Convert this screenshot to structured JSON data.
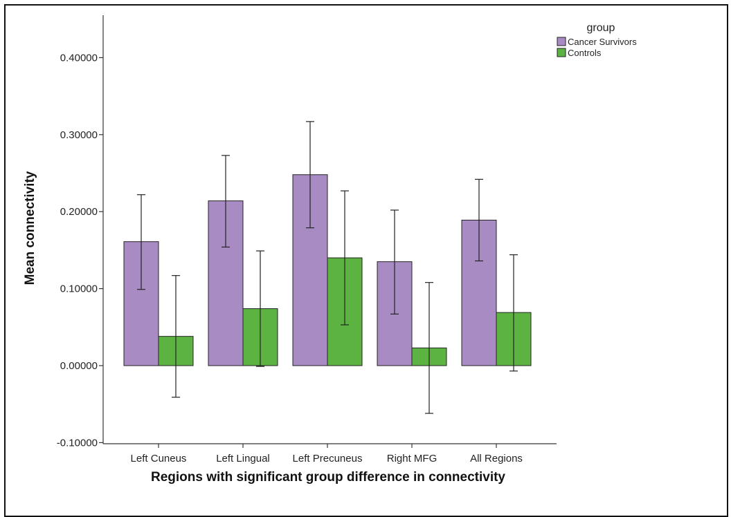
{
  "chart_data": {
    "type": "bar",
    "title": "",
    "xlabel": "Regions with significant group difference in connectivity",
    "ylabel": "Mean connectivity",
    "categories": [
      "Left Cuneus",
      "Left Lingual",
      "Left Precuneus",
      "Right MFG",
      "All Regions"
    ],
    "ylim": [
      -0.1,
      0.45
    ],
    "yticks": [
      "-0.10000",
      "0.00000",
      "0.10000",
      "0.20000",
      "0.30000",
      "0.40000"
    ],
    "ytick_values": [
      -0.1,
      0.0,
      0.1,
      0.2,
      0.3,
      0.4
    ],
    "legend_title": "group",
    "legend_position": "top-right",
    "grid": false,
    "series": [
      {
        "name": "Cancer Survivors",
        "color": "#a98bc3",
        "values": [
          0.161,
          0.214,
          0.248,
          0.135,
          0.189
        ],
        "err_low": [
          0.099,
          0.154,
          0.179,
          0.067,
          0.136
        ],
        "err_high": [
          0.222,
          0.273,
          0.317,
          0.202,
          0.242
        ]
      },
      {
        "name": "Controls",
        "color": "#5db342",
        "values": [
          0.038,
          0.074,
          0.14,
          0.023,
          0.069
        ],
        "err_low": [
          -0.041,
          -0.001,
          0.053,
          -0.062,
          -0.007
        ],
        "err_high": [
          0.117,
          0.149,
          0.227,
          0.108,
          0.144
        ]
      }
    ]
  }
}
